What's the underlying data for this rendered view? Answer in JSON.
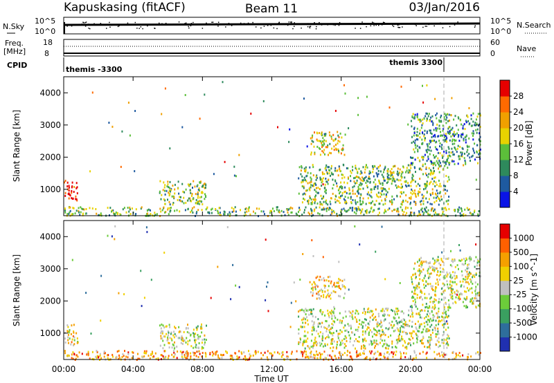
{
  "header": {
    "station": "Kapuskasing (fitACF)",
    "beam": "Beam 11",
    "date": "03/Jan/2016"
  },
  "top_panels": {
    "nsky_label": "N.Sky",
    "nsky_top": "10^5",
    "nsky_bottom": "10^0",
    "nsky_right_top": "10^5",
    "nsky_right_bottom": "10^0",
    "nsearch_label": "N.Search",
    "freq_label": "Freq.",
    "freq_unit": "[MHz]",
    "freq_top": "18",
    "freq_bottom": "8",
    "nave_label": "Nave",
    "nave_top": "60",
    "nave_bottom": "0",
    "cpid_label": "CPID",
    "cpid_left": "themis -3300",
    "cpid_right": "themis 3300"
  },
  "chart_data": [
    {
      "type": "heatmap",
      "title": "",
      "xlabel": "",
      "ylabel": "Slant Range [km]",
      "x_ticks": [
        "00:00",
        "04:00",
        "08:00",
        "12:00",
        "16:00",
        "20:00",
        "00:00"
      ],
      "xlim_hours": [
        0,
        24
      ],
      "y_ticks": [
        1000,
        2000,
        3000,
        4000
      ],
      "ylim_km": [
        180,
        4500
      ],
      "colorbar": {
        "label": "Power [dB]",
        "ticks": [
          "4",
          "8",
          "12",
          "16",
          "20",
          "24",
          "28"
        ],
        "colors": [
          "#0a14e6",
          "#1e5aa0",
          "#2e8a5c",
          "#5cbf3a",
          "#e8d200",
          "#f0a000",
          "#ff6a00",
          "#e60000"
        ]
      },
      "echo_regions": [
        {
          "t0": 0.0,
          "t1": 0.8,
          "r0": 650,
          "r1": 1300,
          "level": 7
        },
        {
          "t0": 0.0,
          "t1": 24.0,
          "r0": 200,
          "r1": 480,
          "level": 3
        },
        {
          "t0": 5.5,
          "t1": 8.2,
          "r0": 550,
          "r1": 1300,
          "level": 3
        },
        {
          "t0": 13.5,
          "t1": 22.2,
          "r0": 550,
          "r1": 1800,
          "level": 3
        },
        {
          "t0": 14.2,
          "t1": 16.2,
          "r0": 2100,
          "r1": 2800,
          "level": 4
        },
        {
          "t0": 20.0,
          "t1": 24.0,
          "r0": 1800,
          "r1": 3400,
          "level": 2
        }
      ]
    },
    {
      "type": "heatmap",
      "title": "",
      "xlabel": "Time UT",
      "ylabel": "Slant Range [km]",
      "x_ticks": [
        "00:00",
        "04:00",
        "08:00",
        "12:00",
        "16:00",
        "20:00",
        "00:00"
      ],
      "xlim_hours": [
        0,
        24
      ],
      "y_ticks": [
        1000,
        2000,
        3000,
        4000
      ],
      "ylim_km": [
        180,
        4500
      ],
      "colorbar": {
        "label": "Velocity [m s^-1]",
        "ticks": [
          "1000",
          "500",
          "100",
          "25",
          "-25",
          "-100",
          "-500",
          "-1000"
        ],
        "colors": [
          "#2030b0",
          "#2e6e9c",
          "#3aa060",
          "#6ccc3a",
          "#c0c0c0",
          "#f0d000",
          "#f5a000",
          "#ff6000",
          "#e60000"
        ]
      },
      "echo_regions": [
        {
          "t0": 0.0,
          "t1": 0.8,
          "r0": 650,
          "r1": 1300,
          "level": 5
        },
        {
          "t0": 0.0,
          "t1": 24.0,
          "r0": 200,
          "r1": 480,
          "level": 6
        },
        {
          "t0": 5.5,
          "t1": 8.2,
          "r0": 550,
          "r1": 1300,
          "level": 4
        },
        {
          "t0": 13.5,
          "t1": 22.2,
          "r0": 550,
          "r1": 1800,
          "level": 4
        },
        {
          "t0": 14.2,
          "t1": 16.2,
          "r0": 2100,
          "r1": 2800,
          "level": 5
        },
        {
          "t0": 20.0,
          "t1": 24.0,
          "r0": 1800,
          "r1": 3400,
          "level": 4
        }
      ]
    }
  ]
}
